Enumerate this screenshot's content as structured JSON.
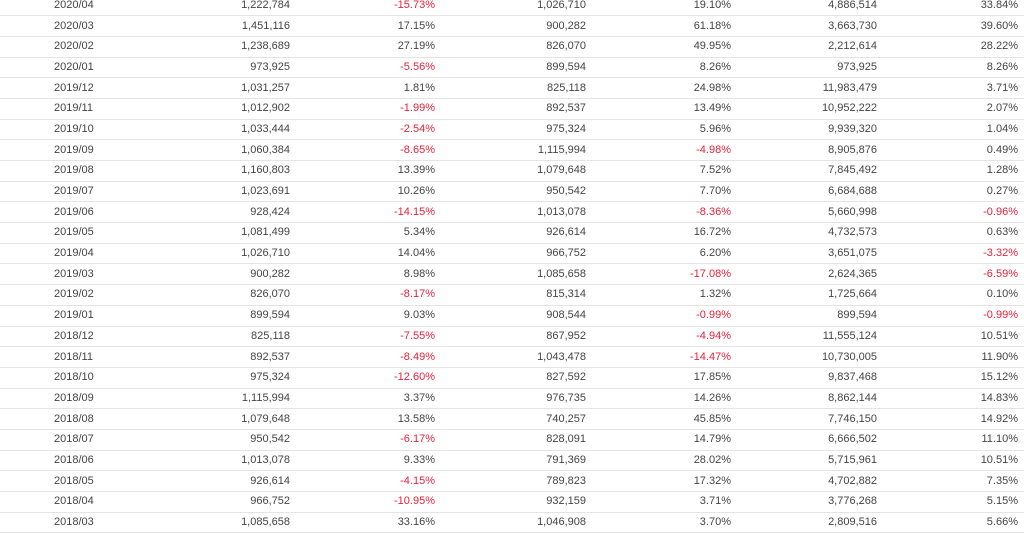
{
  "rows": [
    [
      "2020/04",
      "1,222,784",
      "-15.73%",
      "1,026,710",
      "19.10%",
      "4,886,514",
      "33.84%"
    ],
    [
      "2020/03",
      "1,451,116",
      "17.15%",
      "900,282",
      "61.18%",
      "3,663,730",
      "39.60%"
    ],
    [
      "2020/02",
      "1,238,689",
      "27.19%",
      "826,070",
      "49.95%",
      "2,212,614",
      "28.22%"
    ],
    [
      "2020/01",
      "973,925",
      "-5.56%",
      "899,594",
      "8.26%",
      "973,925",
      "8.26%"
    ],
    [
      "2019/12",
      "1,031,257",
      "1.81%",
      "825,118",
      "24.98%",
      "11,983,479",
      "3.71%"
    ],
    [
      "2019/11",
      "1,012,902",
      "-1.99%",
      "892,537",
      "13.49%",
      "10,952,222",
      "2.07%"
    ],
    [
      "2019/10",
      "1,033,444",
      "-2.54%",
      "975,324",
      "5.96%",
      "9,939,320",
      "1.04%"
    ],
    [
      "2019/09",
      "1,060,384",
      "-8.65%",
      "1,115,994",
      "-4.98%",
      "8,905,876",
      "0.49%"
    ],
    [
      "2019/08",
      "1,160,803",
      "13.39%",
      "1,079,648",
      "7.52%",
      "7,845,492",
      "1.28%"
    ],
    [
      "2019/07",
      "1,023,691",
      "10.26%",
      "950,542",
      "7.70%",
      "6,684,688",
      "0.27%"
    ],
    [
      "2019/06",
      "928,424",
      "-14.15%",
      "1,013,078",
      "-8.36%",
      "5,660,998",
      "-0.96%"
    ],
    [
      "2019/05",
      "1,081,499",
      "5.34%",
      "926,614",
      "16.72%",
      "4,732,573",
      "0.63%"
    ],
    [
      "2019/04",
      "1,026,710",
      "14.04%",
      "966,752",
      "6.20%",
      "3,651,075",
      "-3.32%"
    ],
    [
      "2019/03",
      "900,282",
      "8.98%",
      "1,085,658",
      "-17.08%",
      "2,624,365",
      "-6.59%"
    ],
    [
      "2019/02",
      "826,070",
      "-8.17%",
      "815,314",
      "1.32%",
      "1,725,664",
      "0.10%"
    ],
    [
      "2019/01",
      "899,594",
      "9.03%",
      "908,544",
      "-0.99%",
      "899,594",
      "-0.99%"
    ],
    [
      "2018/12",
      "825,118",
      "-7.55%",
      "867,952",
      "-4.94%",
      "11,555,124",
      "10.51%"
    ],
    [
      "2018/11",
      "892,537",
      "-8.49%",
      "1,043,478",
      "-14.47%",
      "10,730,005",
      "11.90%"
    ],
    [
      "2018/10",
      "975,324",
      "-12.60%",
      "827,592",
      "17.85%",
      "9,837,468",
      "15.12%"
    ],
    [
      "2018/09",
      "1,115,994",
      "3.37%",
      "976,735",
      "14.26%",
      "8,862,144",
      "14.83%"
    ],
    [
      "2018/08",
      "1,079,648",
      "13.58%",
      "740,257",
      "45.85%",
      "7,746,150",
      "14.92%"
    ],
    [
      "2018/07",
      "950,542",
      "-6.17%",
      "828,091",
      "14.79%",
      "6,666,502",
      "11.10%"
    ],
    [
      "2018/06",
      "1,013,078",
      "9.33%",
      "791,369",
      "28.02%",
      "5,715,961",
      "10.51%"
    ],
    [
      "2018/05",
      "926,614",
      "-4.15%",
      "789,823",
      "17.32%",
      "4,702,882",
      "7.35%"
    ],
    [
      "2018/04",
      "966,752",
      "-10.95%",
      "932,159",
      "3.71%",
      "3,776,268",
      "5.15%"
    ],
    [
      "2018/03",
      "1,085,658",
      "33.16%",
      "1,046,908",
      "3.70%",
      "2,809,516",
      "5.66%"
    ]
  ],
  "colors": {
    "text": "#444444",
    "negative": "#e8213a",
    "row_border": "#e4e4e4"
  }
}
